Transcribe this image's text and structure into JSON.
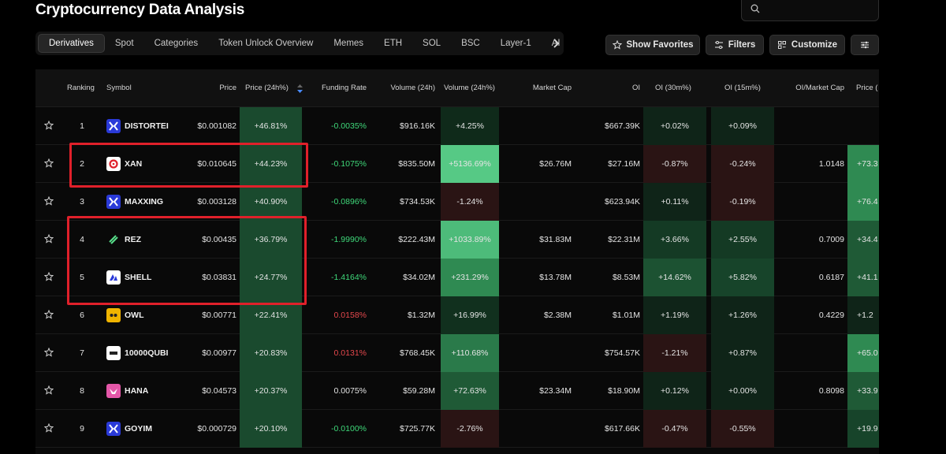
{
  "page": {
    "title": "Cryptocurrency Data Analysis"
  },
  "search": {
    "placeholder": ""
  },
  "tabs": [
    "Derivatives",
    "Spot",
    "Categories",
    "Token Unlock Overview",
    "Memes",
    "ETH",
    "SOL",
    "BSC",
    "Layer-1",
    "AI"
  ],
  "toolbar": {
    "favorites_label": "Show Favorites",
    "filters_label": "Filters",
    "customize_label": "Customize"
  },
  "columns": {
    "ranking": "Ranking",
    "symbol": "Symbol",
    "price": "Price",
    "price_24h": "Price (24h%)",
    "funding_rate": "Funding Rate",
    "volume_24h": "Volume (24h)",
    "volume_24h_pct": "Volume (24h%)",
    "market_cap": "Market Cap",
    "oi": "OI",
    "oi_30m": "OI (30m%)",
    "oi_15m": "OI (15m%)",
    "oi_mcap": "OI/Market Cap",
    "price_trunc": "Price ("
  },
  "colors": {
    "positive_text": "#3fd97a",
    "negative_text": "#e5484d",
    "green_cell": "#1a4a2e",
    "bright_green_cell": "#3dac6a",
    "dark_red_cell": "#2a1414",
    "highlight": "#e0202a"
  },
  "rows": [
    {
      "rank": "1",
      "symbol": "DISTORTEI",
      "icon": "x-logo-icon",
      "price": "$0.001082",
      "price_24h": "+46.81%",
      "funding": "-0.0035%",
      "funding_color": "#3fd97a",
      "volume": "$916.16K",
      "volume_pct": "+4.25%",
      "volume_bg": "#0f2a1a",
      "mcap": "",
      "oi": "$667.39K",
      "oi30": "+0.02%",
      "oi30_bg": "#0f2418",
      "oi15": "+0.09%",
      "oi15_bg": "#0f2418",
      "oimc": "",
      "last": "",
      "last_bg": ""
    },
    {
      "rank": "2",
      "symbol": "XAN",
      "icon": "xan-logo-icon",
      "price": "$0.010645",
      "price_24h": "+44.23%",
      "funding": "-0.1075%",
      "funding_color": "#3fd97a",
      "volume": "$835.50M",
      "volume_pct": "+5136.69%",
      "volume_bg": "#56c985",
      "mcap": "$26.76M",
      "oi": "$27.16M",
      "oi30": "-0.87%",
      "oi30_bg": "#2a1414",
      "oi15": "-0.24%",
      "oi15_bg": "#2a1414",
      "oimc": "1.0148",
      "last": "+73.3",
      "last_bg": "#2f8a52"
    },
    {
      "rank": "3",
      "symbol": "MAXXING",
      "icon": "x-logo-icon",
      "price": "$0.003128",
      "price_24h": "+40.90%",
      "funding": "-0.0896%",
      "funding_color": "#3fd97a",
      "volume": "$734.53K",
      "volume_pct": "-1.24%",
      "volume_bg": "#2a1414",
      "mcap": "",
      "oi": "$623.94K",
      "oi30": "+0.11%",
      "oi30_bg": "#0f2418",
      "oi15": "-0.19%",
      "oi15_bg": "#2a1414",
      "oimc": "",
      "last": "+76.4",
      "last_bg": "#2f8a52"
    },
    {
      "rank": "4",
      "symbol": "REZ",
      "icon": "rez-logo-icon",
      "price": "$0.00435",
      "price_24h": "+36.79%",
      "funding": "-1.9990%",
      "funding_color": "#3fd97a",
      "volume": "$222.43M",
      "volume_pct": "+1033.89%",
      "volume_bg": "#4dbb7a",
      "mcap": "$31.83M",
      "oi": "$22.31M",
      "oi30": "+3.66%",
      "oi30_bg": "#143a24",
      "oi15": "+2.55%",
      "oi15_bg": "#143a24",
      "oimc": "0.7009",
      "last": "+34.4",
      "last_bg": "#1f5a36"
    },
    {
      "rank": "5",
      "symbol": "SHELL",
      "icon": "shell-logo-icon",
      "price": "$0.03831",
      "price_24h": "+24.77%",
      "funding": "-1.4164%",
      "funding_color": "#3fd97a",
      "volume": "$34.02M",
      "volume_pct": "+231.29%",
      "volume_bg": "#2f8a52",
      "mcap": "$13.78M",
      "oi": "$8.53M",
      "oi30": "+14.62%",
      "oi30_bg": "#1c5232",
      "oi15": "+5.82%",
      "oi15_bg": "#17442a",
      "oimc": "0.6187",
      "last": "+41.1",
      "last_bg": "#1f5a36"
    },
    {
      "rank": "6",
      "symbol": "OWL",
      "icon": "owl-logo-icon",
      "price": "$0.00771",
      "price_24h": "+22.41%",
      "funding": "0.0158%",
      "funding_color": "#e5484d",
      "volume": "$1.32M",
      "volume_pct": "+16.99%",
      "volume_bg": "#11301e",
      "mcap": "$2.38M",
      "oi": "$1.01M",
      "oi30": "+1.19%",
      "oi30_bg": "#0f2418",
      "oi15": "+1.26%",
      "oi15_bg": "#0f2418",
      "oimc": "0.4229",
      "last": "+1.2",
      "last_bg": "#0f2418"
    },
    {
      "rank": "7",
      "symbol": "10000QUBI",
      "icon": "qubi-logo-icon",
      "price": "$0.00977",
      "price_24h": "+20.83%",
      "funding": "0.0131%",
      "funding_color": "#e5484d",
      "volume": "$768.45K",
      "volume_pct": "+110.68%",
      "volume_bg": "#2a7a4a",
      "mcap": "",
      "oi": "$754.57K",
      "oi30": "-1.21%",
      "oi30_bg": "#2a1414",
      "oi15": "+0.87%",
      "oi15_bg": "#0f2418",
      "oimc": "",
      "last": "+65.0",
      "last_bg": "#2f8a52"
    },
    {
      "rank": "8",
      "symbol": "HANA",
      "icon": "hana-logo-icon",
      "price": "$0.04573",
      "price_24h": "+20.37%",
      "funding": "0.0075%",
      "funding_color": "#e4e4e4",
      "volume": "$59.28M",
      "volume_pct": "+72.63%",
      "volume_bg": "#1f5a36",
      "mcap": "$23.34M",
      "oi": "$18.90M",
      "oi30": "+0.12%",
      "oi30_bg": "#0f2418",
      "oi15": "+0.00%",
      "oi15_bg": "#0f2418",
      "oimc": "0.8098",
      "last": "+33.9",
      "last_bg": "#1f5a36"
    },
    {
      "rank": "9",
      "symbol": "GOYIM",
      "icon": "x-logo-icon",
      "price": "$0.000729",
      "price_24h": "+20.10%",
      "funding": "-0.0100%",
      "funding_color": "#3fd97a",
      "volume": "$725.77K",
      "volume_pct": "-2.76%",
      "volume_bg": "#2a1414",
      "mcap": "",
      "oi": "$617.66K",
      "oi30": "-0.47%",
      "oi30_bg": "#2a1414",
      "oi15": "-0.55%",
      "oi15_bg": "#2a1414",
      "oimc": "",
      "last": "+19.9",
      "last_bg": "#17442a"
    }
  ]
}
